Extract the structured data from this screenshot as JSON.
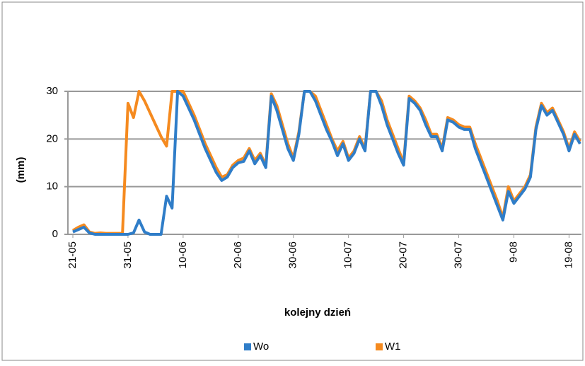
{
  "chart_data": {
    "type": "line",
    "ylabel": "(mm)",
    "xlabel": "kolejny dzień",
    "categories": [
      "21-05",
      null,
      null,
      null,
      null,
      null,
      null,
      null,
      null,
      null,
      "31-05",
      null,
      null,
      null,
      null,
      null,
      null,
      null,
      null,
      null,
      "10-06",
      null,
      null,
      null,
      null,
      null,
      null,
      null,
      null,
      null,
      "20-06",
      null,
      null,
      null,
      null,
      null,
      null,
      null,
      null,
      null,
      "30-06",
      null,
      null,
      null,
      null,
      null,
      null,
      null,
      null,
      null,
      "10-07",
      null,
      null,
      null,
      null,
      null,
      null,
      null,
      null,
      null,
      "20-07",
      null,
      null,
      null,
      null,
      null,
      null,
      null,
      null,
      null,
      "30-07",
      null,
      null,
      null,
      null,
      null,
      null,
      null,
      null,
      null,
      "9-08",
      null,
      null,
      null,
      null,
      null,
      null,
      null,
      null,
      null,
      "19-08",
      null,
      null
    ],
    "series": [
      {
        "name": "Wo",
        "color": "#2f7dc8",
        "values": [
          0.5,
          1,
          1.5,
          0.3,
          0,
          0,
          0,
          0,
          0,
          0,
          0,
          0.3,
          3,
          0.5,
          0,
          0,
          0,
          8,
          5.5,
          30,
          29,
          26.5,
          24,
          21,
          18,
          15.5,
          13,
          11.3,
          12,
          14,
          15,
          15.3,
          17.5,
          14.8,
          16.5,
          14,
          29,
          26,
          22,
          18,
          15.5,
          21,
          30,
          30,
          28,
          25,
          22,
          19.5,
          16.5,
          19,
          15.5,
          17,
          20,
          17.5,
          30,
          30,
          27,
          23,
          20,
          17,
          14.5,
          28.5,
          27.5,
          26,
          23,
          20.5,
          20.5,
          17.5,
          24,
          23.5,
          22.5,
          22,
          22,
          18,
          15,
          12,
          9,
          6,
          3,
          9,
          6.5,
          8,
          9.5,
          12,
          22,
          27,
          25,
          26,
          23.5,
          21,
          17.5,
          21,
          19
        ]
      },
      {
        "name": "W1",
        "color": "#f58a1f",
        "values": [
          0.8,
          1.5,
          2,
          0.5,
          0.2,
          0.3,
          0.2,
          0.2,
          0.2,
          0.2,
          27.5,
          24.5,
          30,
          28,
          25.5,
          23,
          20.5,
          18.5,
          30,
          30,
          30,
          27.5,
          25,
          22,
          19,
          16.5,
          14,
          12,
          12.5,
          14.5,
          15.5,
          16,
          18,
          15.5,
          17,
          14.5,
          29.5,
          27,
          23,
          19,
          16,
          21.5,
          30,
          30,
          29,
          26,
          23,
          20,
          17.5,
          19.5,
          16,
          17.5,
          20.5,
          18,
          30,
          30,
          28,
          24,
          21,
          18,
          15,
          29,
          28,
          26.5,
          24,
          21,
          21,
          18,
          24.5,
          24,
          23,
          22.5,
          22.5,
          19,
          16,
          13,
          10,
          7,
          3.5,
          10,
          7,
          8.5,
          10,
          12.5,
          22.5,
          27.5,
          25.5,
          26.5,
          24,
          21.5,
          18,
          21.5,
          19.5
        ]
      }
    ],
    "ylim": [
      0,
      30
    ],
    "yticks": [
      0,
      10,
      20,
      30
    ],
    "grid": true
  }
}
